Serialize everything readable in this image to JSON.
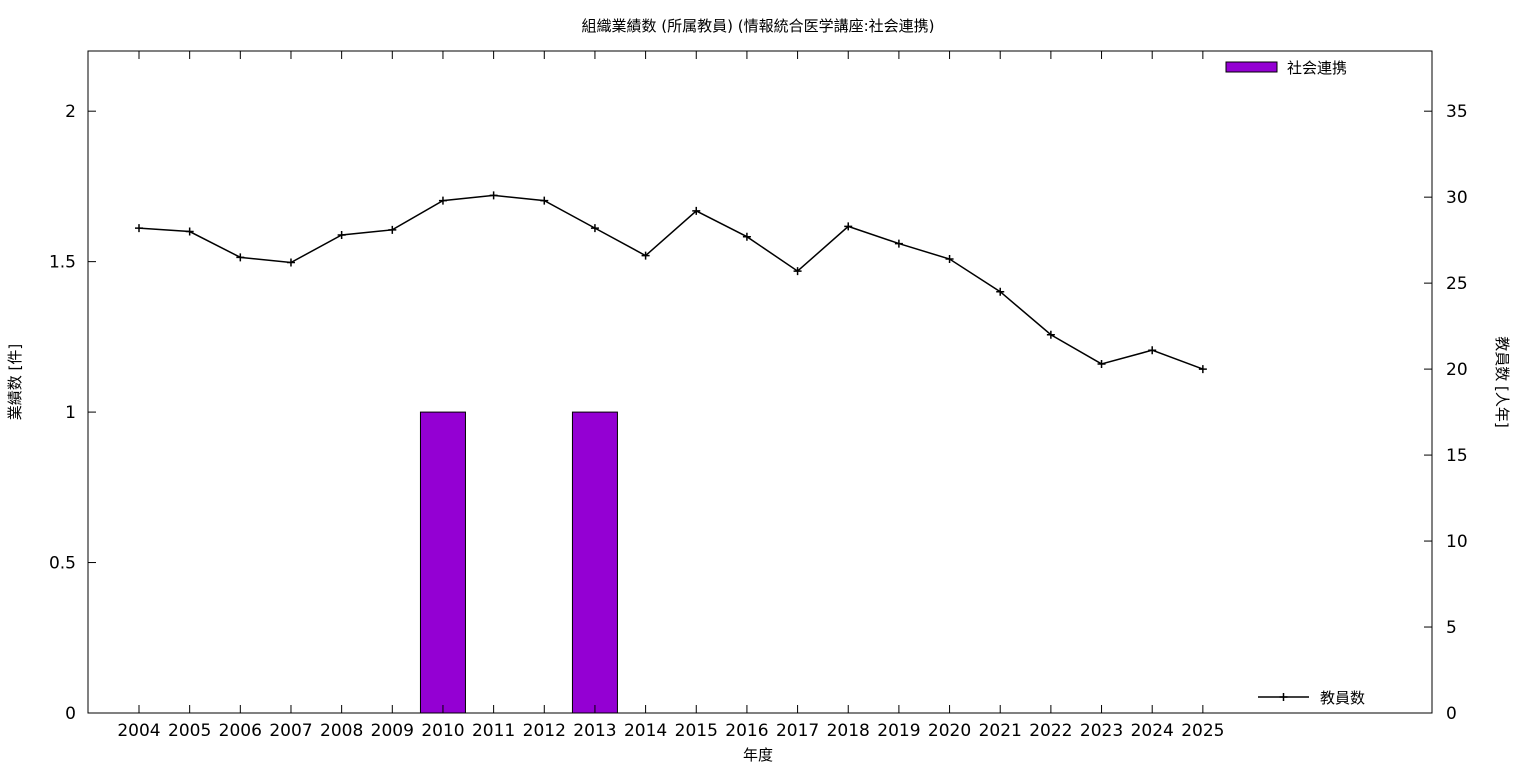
{
  "chart_data": {
    "type": "bar",
    "title": "組織業績数 (所属教員) (情報統合医学講座:社会連携)",
    "xlabel": "年度",
    "ylabel": "業績数 [件]",
    "y2label": "教員数 [人年]",
    "categories": [
      "2004",
      "2005",
      "2006",
      "2007",
      "2008",
      "2009",
      "2010",
      "2011",
      "2012",
      "2013",
      "2014",
      "2015",
      "2016",
      "2017",
      "2018",
      "2019",
      "2020",
      "2021",
      "2022",
      "2023",
      "2024",
      "2025"
    ],
    "ylim": [
      0,
      2.2
    ],
    "yticks": [
      "0",
      "0.5",
      "1",
      "1.5",
      "2"
    ],
    "y2lim": [
      0,
      38.5
    ],
    "y2ticks": [
      "0",
      "5",
      "10",
      "15",
      "20",
      "25",
      "30",
      "35"
    ],
    "grid": false,
    "series": [
      {
        "name": "社会連携",
        "kind": "bar",
        "axis": "y",
        "color": "#9400d3",
        "values": [
          0,
          0,
          0,
          0,
          0,
          0,
          1,
          0,
          0,
          1,
          0,
          0,
          0,
          0,
          0,
          0,
          0,
          0,
          0,
          0,
          0,
          0
        ],
        "legend_position": "top-right"
      },
      {
        "name": "教員数",
        "kind": "line",
        "axis": "y2",
        "color": "#000000",
        "marker": "plus",
        "values": [
          28.2,
          28.0,
          26.5,
          26.2,
          27.8,
          28.1,
          29.8,
          30.1,
          29.8,
          28.2,
          26.6,
          29.2,
          27.7,
          25.7,
          28.3,
          27.3,
          26.4,
          24.5,
          22.0,
          20.3,
          21.1,
          20.0
        ],
        "legend_position": "bottom-right"
      }
    ]
  }
}
